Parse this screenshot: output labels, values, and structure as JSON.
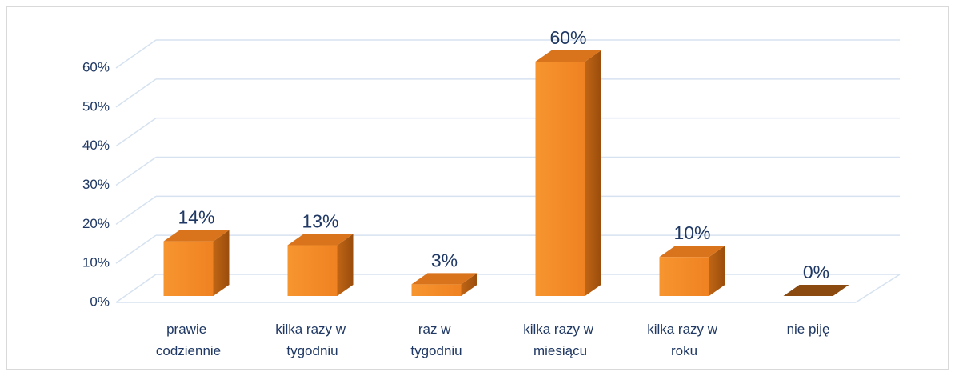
{
  "chart_data": {
    "type": "bar3d",
    "categories": [
      "prawie codziennie",
      "kilka razy w tygodniu",
      "raz w tygodniu",
      "kilka razy w miesiącu",
      "kilka razy w roku",
      "nie piję"
    ],
    "values": [
      14,
      13,
      3,
      60,
      10,
      0
    ],
    "value_labels": [
      "14%",
      "13%",
      "3%",
      "60%",
      "10%",
      "0%"
    ],
    "color": "#f5892a",
    "ylim": [
      0,
      60
    ],
    "yticks": [
      {
        "value": 0,
        "label": "0%"
      },
      {
        "value": 10,
        "label": "10%"
      },
      {
        "value": 20,
        "label": "20%"
      },
      {
        "value": 30,
        "label": "30%"
      },
      {
        "value": 40,
        "label": "40%"
      },
      {
        "value": 50,
        "label": "50%"
      },
      {
        "value": 60,
        "label": "60%"
      }
    ],
    "grid": true
  }
}
